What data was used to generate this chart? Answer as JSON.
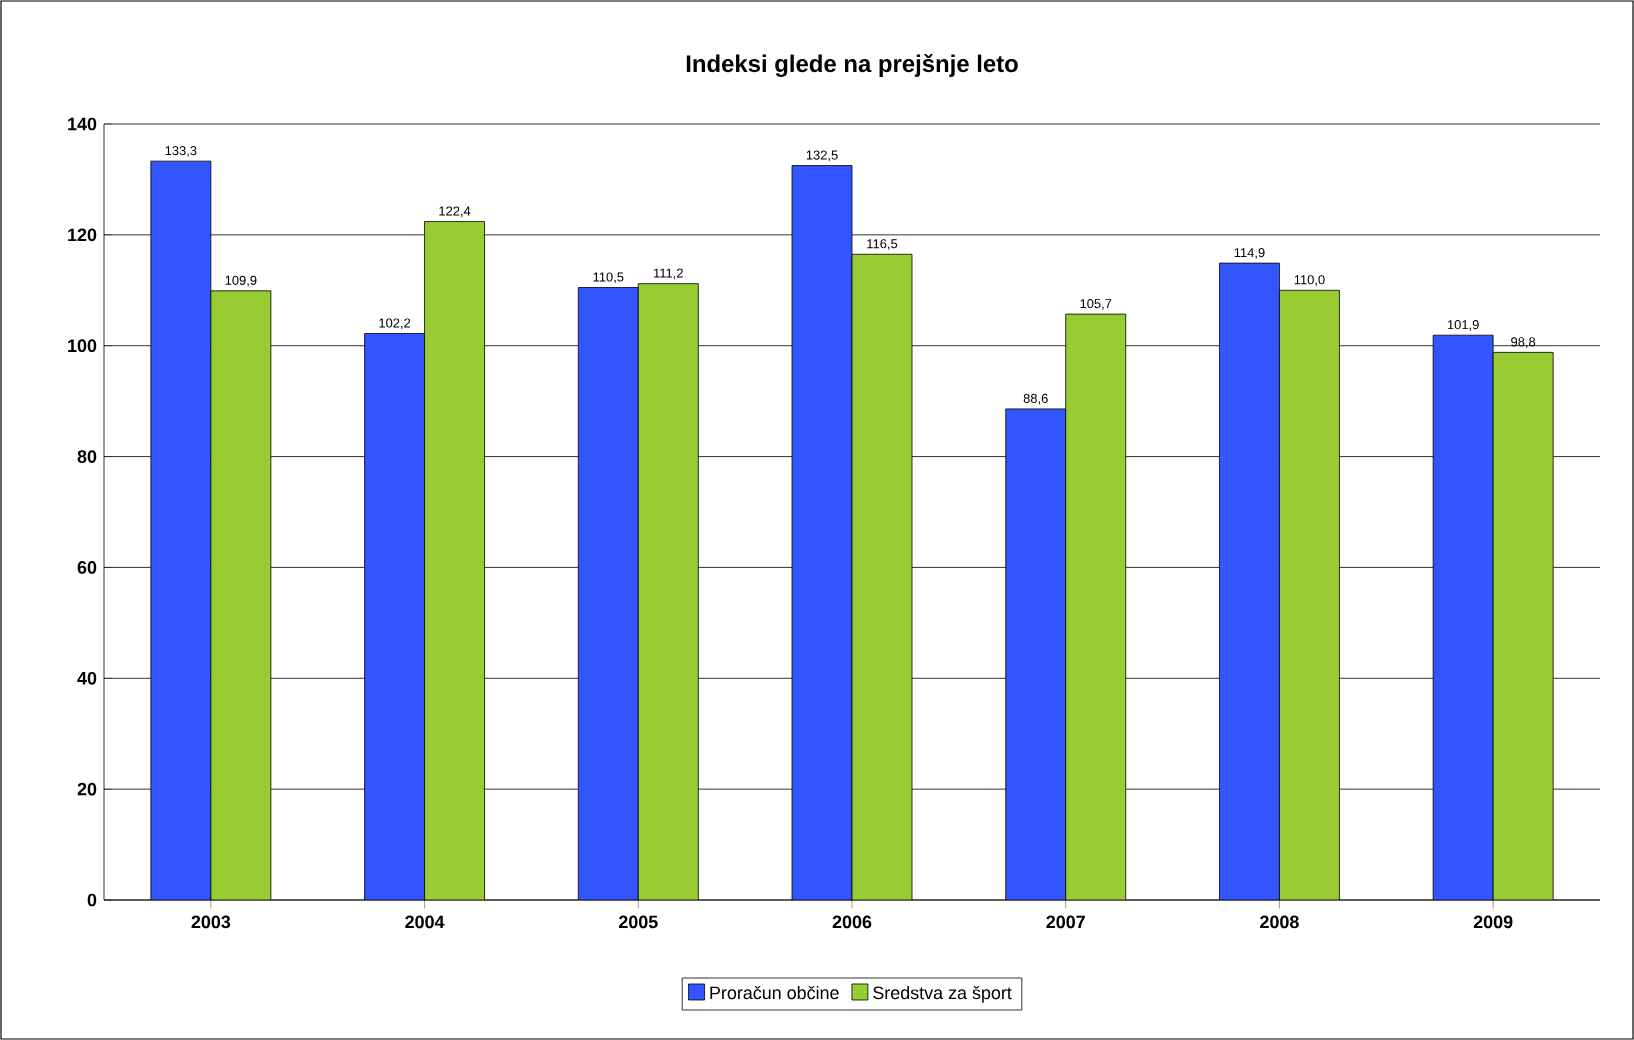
{
  "chart_data": {
    "type": "bar",
    "title": "Indeksi glede na prejšnje leto",
    "categories": [
      "2003",
      "2004",
      "2005",
      "2006",
      "2007",
      "2008",
      "2009"
    ],
    "series": [
      {
        "name": "Proračun občine",
        "color": "#3355ff",
        "values": [
          133.3,
          102.2,
          110.5,
          132.5,
          88.6,
          114.9,
          101.9
        ],
        "value_labels": [
          "133,3",
          "102,2",
          "110,5",
          "132,5",
          "88,6",
          "114,9",
          "101,9"
        ]
      },
      {
        "name": "Sredstva za šport",
        "color": "#99cc33",
        "values": [
          109.9,
          122.4,
          111.2,
          116.5,
          105.7,
          110.0,
          98.8
        ],
        "value_labels": [
          "109,9",
          "122,4",
          "111,2",
          "116,5",
          "105,7",
          "110,0",
          "98,8"
        ]
      }
    ],
    "ylim": [
      0,
      140
    ],
    "yticks": [
      0,
      20,
      40,
      60,
      80,
      100,
      120,
      140
    ],
    "grid": "y",
    "legend": "bottom"
  }
}
